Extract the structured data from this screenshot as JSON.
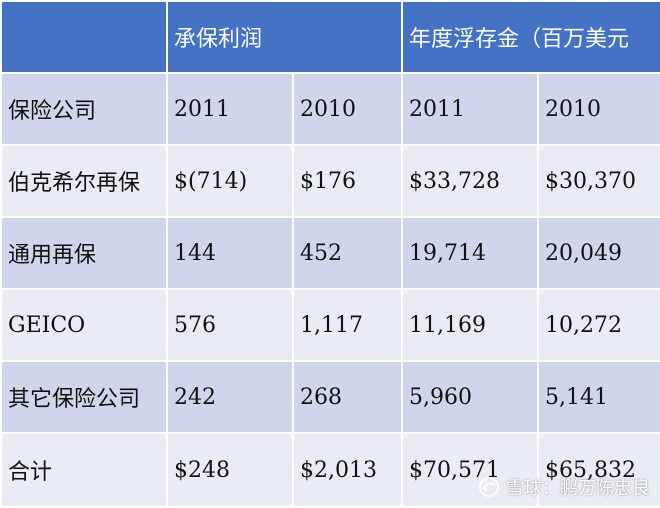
{
  "header": {
    "col0": "",
    "underwriting_profit": "承保利润",
    "float": "年度浮存金（百万美元"
  },
  "rows": [
    {
      "name": "保险公司",
      "c1": "2011",
      "c2": "2010",
      "c3": "2011",
      "c4": "2010"
    },
    {
      "name": "伯克希尔再保",
      "c1": "$(714)",
      "c2": "$176",
      "c3": "$33,728",
      "c4": "$30,370"
    },
    {
      "name": "通用再保",
      "c1": "144",
      "c2": "452",
      "c3": "19,714",
      "c4": "20,049"
    },
    {
      "name": "GEICO",
      "c1": "576",
      "c2": "1,117",
      "c3": "11,169",
      "c4": "10,272"
    },
    {
      "name": "其它保险公司",
      "c1": "242",
      "c2": "268",
      "c3": "5,960",
      "c4": "5,141"
    },
    {
      "name": "合计",
      "c1": "$248",
      "c2": "$2,013",
      "c3": "$70,571",
      "c4": "$65,832"
    }
  ],
  "watermark": {
    "text": "雪球：鹏万陈忠良",
    "icon": "snowball-logo-icon"
  },
  "colors": {
    "header_bg": "#4472c4",
    "row_dark": "#cfd5ea",
    "row_light": "#e9ebf5"
  }
}
